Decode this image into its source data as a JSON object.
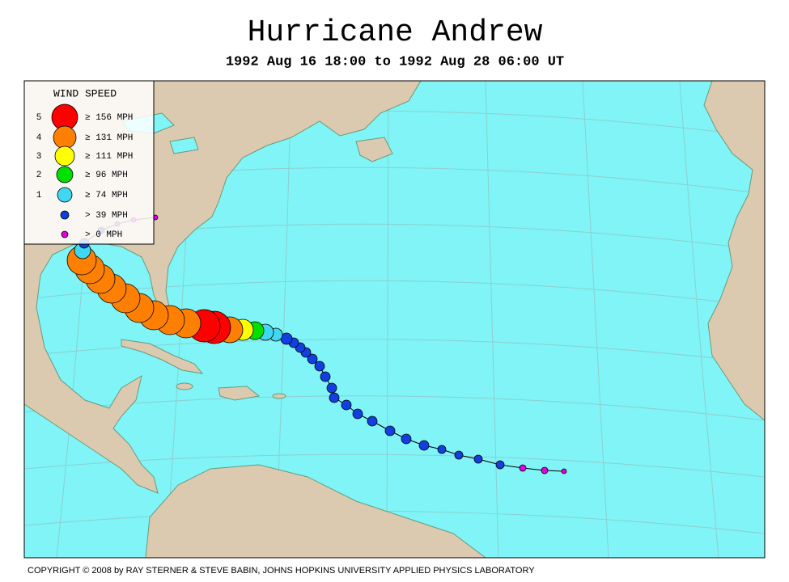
{
  "header": {
    "title": "Hurricane Andrew",
    "subtitle": "1992 Aug 16 18:00 to 1992 Aug 28 06:00 UT"
  },
  "legend": {
    "title": "WIND SPEED",
    "entries": [
      {
        "category": "5",
        "label": "≥ 156 MPH",
        "color": "#ff0000"
      },
      {
        "category": "4",
        "label": "≥ 131 MPH",
        "color": "#ff8000"
      },
      {
        "category": "3",
        "label": "≥ 111 MPH",
        "color": "#ffff00"
      },
      {
        "category": "2",
        "label": "≥ 96 MPH",
        "color": "#00e000"
      },
      {
        "category": "1",
        "label": "≥ 74 MPH",
        "color": "#40d8f0"
      },
      {
        "label": "> 39 MPH",
        "color": "#1040e0"
      },
      {
        "label": "> 0 MPH",
        "color": "#e000e0"
      }
    ]
  },
  "footer": {
    "copyright": "COPYRIGHT © 2008 by RAY STERNER & STEVE BABIN, JOHNS HOPKINS UNIVERSITY APPLIED PHYSICS LABORATORY"
  }
}
